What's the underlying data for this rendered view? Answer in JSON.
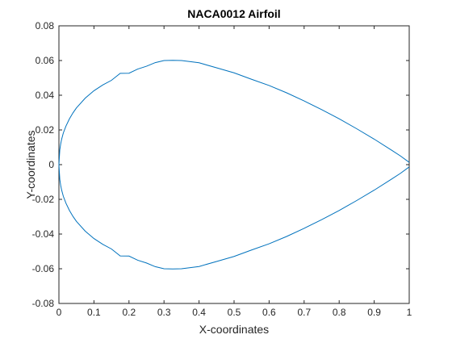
{
  "chart_data": {
    "type": "line",
    "title": "NACA0012 Airfoil",
    "xlabel": "X-coordinates",
    "ylabel": "Y-coordinates",
    "xlim": [
      0,
      1
    ],
    "ylim": [
      -0.08,
      0.08
    ],
    "xticks": [
      0,
      0.1,
      0.2,
      0.3,
      0.4,
      0.5,
      0.6,
      0.7,
      0.8,
      0.9,
      1
    ],
    "xtick_labels": [
      "0",
      "0.1",
      "0.2",
      "0.3",
      "0.4",
      "0.5",
      "0.6",
      "0.7",
      "0.8",
      "0.9",
      "1"
    ],
    "yticks": [
      -0.08,
      -0.06,
      -0.04,
      -0.02,
      0,
      0.02,
      0.04,
      0.06,
      0.08
    ],
    "ytick_labels": [
      "-0.08",
      "-0.06",
      "-0.04",
      "-0.02",
      "0",
      "0.02",
      "0.04",
      "0.06",
      "0.08"
    ],
    "grid": false,
    "line_color": "#0072BD",
    "series": [
      {
        "x": [
          0,
          0.0025,
          0.005,
          0.0075,
          0.0125,
          0.02,
          0.03,
          0.04,
          0.05,
          0.075,
          0.1,
          0.125,
          0.15,
          0.175,
          0.2,
          0.225,
          0.25,
          0.275,
          0.3,
          0.325,
          0.35,
          0.4,
          0.45,
          0.5,
          0.55,
          0.6,
          0.65,
          0.7,
          0.75,
          0.8,
          0.85,
          0.9,
          0.95,
          0.975,
          1
        ],
        "y_upper": [
          0,
          0.0085,
          0.0119,
          0.0144,
          0.0182,
          0.0222,
          0.0264,
          0.0298,
          0.0327,
          0.0383,
          0.0426,
          0.0459,
          0.0486,
          0.0526,
          0.0527,
          0.0551,
          0.0567,
          0.0588,
          0.06,
          0.0601,
          0.06,
          0.0587,
          0.0558,
          0.0529,
          0.0492,
          0.0456,
          0.0414,
          0.0367,
          0.0317,
          0.0264,
          0.0207,
          0.0147,
          0.0083,
          0.005,
          0.0013
        ],
        "y_lower": [
          0,
          -0.0085,
          -0.0119,
          -0.0144,
          -0.0182,
          -0.0222,
          -0.0264,
          -0.0298,
          -0.0327,
          -0.0383,
          -0.0426,
          -0.0459,
          -0.0486,
          -0.0526,
          -0.0527,
          -0.0551,
          -0.0567,
          -0.0588,
          -0.06,
          -0.0601,
          -0.06,
          -0.0587,
          -0.0558,
          -0.0529,
          -0.0492,
          -0.0456,
          -0.0414,
          -0.0367,
          -0.0317,
          -0.0264,
          -0.0207,
          -0.0147,
          -0.0083,
          -0.005,
          -0.0013
        ]
      }
    ]
  }
}
